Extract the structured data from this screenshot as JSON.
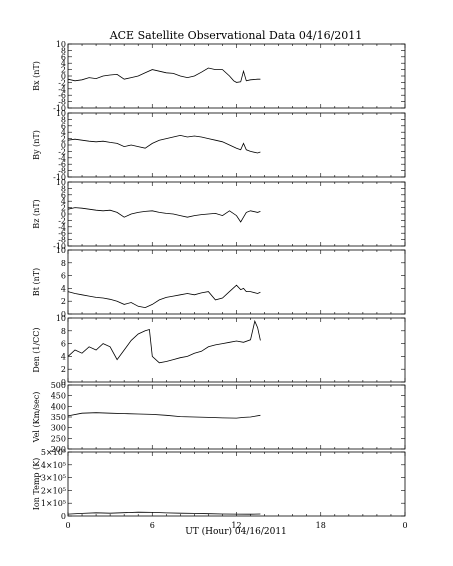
{
  "figure": {
    "title": "ACE Satellite Observational Data   04/16/2011",
    "xlabel": "UT (Hour)  04/16/2011"
  },
  "chart_data": [
    {
      "type": "line",
      "ylabel": "Bx (nT)",
      "ylim": [
        -10,
        10
      ],
      "yticks": [
        "-10",
        "-8",
        "-6",
        "-4",
        "-2",
        "0",
        "2",
        "4",
        "6",
        "8",
        "10"
      ],
      "xlim": [
        0,
        24
      ],
      "series": [
        {
          "x": [
            0,
            0.5,
            1,
            1.5,
            2,
            2.5,
            3,
            3.5,
            4,
            4.5,
            5,
            5.5,
            6,
            6.5,
            7,
            7.5,
            8,
            8.5,
            9,
            9.5,
            10,
            10.5,
            11,
            11.5,
            11.8,
            12,
            12.3,
            12.5,
            12.7,
            13,
            13.5,
            13.7
          ],
          "values": [
            -1,
            -1.5,
            -1.2,
            -0.5,
            -0.8,
            0,
            0.3,
            0.5,
            -1,
            -0.5,
            0,
            1,
            2,
            1.5,
            1,
            0.8,
            0,
            -0.5,
            0,
            1.2,
            2.5,
            2,
            2,
            0,
            -1.5,
            -2,
            -1.8,
            1.5,
            -1.5,
            -1.2,
            -1,
            -1
          ]
        }
      ]
    },
    {
      "type": "line",
      "ylabel": "By (nT)",
      "ylim": [
        -10,
        10
      ],
      "yticks": [
        "-10",
        "-8",
        "-6",
        "-4",
        "-2",
        "0",
        "2",
        "4",
        "6",
        "8",
        "10"
      ],
      "xlim": [
        0,
        24
      ],
      "series": [
        {
          "x": [
            0,
            0.5,
            1,
            1.5,
            2,
            2.5,
            3,
            3.5,
            4,
            4.5,
            5,
            5.5,
            6,
            6.5,
            7,
            7.5,
            8,
            8.5,
            9,
            9.5,
            10,
            10.5,
            11,
            11.5,
            12,
            12.3,
            12.5,
            12.7,
            13,
            13.5,
            13.7
          ],
          "values": [
            1.5,
            1.8,
            1.5,
            1.2,
            1,
            1.2,
            0.8,
            0.5,
            -0.5,
            0,
            -0.5,
            -1,
            0.5,
            1.5,
            2,
            2.5,
            3,
            2.5,
            2.8,
            2.5,
            2,
            1.5,
            1,
            0,
            -1,
            -1.5,
            0.5,
            -1.5,
            -2,
            -2.5,
            -2.2
          ]
        }
      ]
    },
    {
      "type": "line",
      "ylabel": "Bz (nT)",
      "ylim": [
        -10,
        10
      ],
      "yticks": [
        "-10",
        "-8",
        "-6",
        "-4",
        "-2",
        "0",
        "2",
        "4",
        "6",
        "8",
        "10"
      ],
      "xlim": [
        0,
        24
      ],
      "series": [
        {
          "x": [
            0,
            0.5,
            1,
            1.5,
            2,
            2.5,
            3,
            3.5,
            4,
            4.5,
            5,
            5.5,
            6,
            6.5,
            7,
            7.5,
            8,
            8.5,
            9,
            9.5,
            10,
            10.5,
            11,
            11.5,
            12,
            12.3,
            12.5,
            12.7,
            13,
            13.5,
            13.7
          ],
          "values": [
            1.5,
            2,
            1.8,
            1.5,
            1.2,
            1,
            1.2,
            0.5,
            -1,
            0,
            0.5,
            0.8,
            1,
            0.5,
            0.2,
            0,
            -0.5,
            -1,
            -0.5,
            -0.2,
            0,
            0.2,
            -0.5,
            1,
            -0.5,
            -2.5,
            -1,
            0.5,
            1,
            0.5,
            0.8
          ]
        }
      ]
    },
    {
      "type": "line",
      "ylabel": "Bt (nT)",
      "ylim": [
        0,
        10
      ],
      "yticks": [
        "0",
        "2",
        "4",
        "6",
        "8",
        "10"
      ],
      "xlim": [
        0,
        24
      ],
      "series": [
        {
          "x": [
            0,
            0.5,
            1,
            1.5,
            2,
            2.5,
            3,
            3.5,
            4,
            4.5,
            5,
            5.5,
            6,
            6.5,
            7,
            7.5,
            8,
            8.5,
            9,
            9.5,
            10,
            10.5,
            11,
            11.5,
            12,
            12.3,
            12.5,
            12.7,
            13,
            13.5,
            13.7
          ],
          "values": [
            3.5,
            3.2,
            3,
            2.8,
            2.6,
            2.5,
            2.3,
            2,
            1.5,
            1.8,
            1.2,
            1,
            1.5,
            2.2,
            2.6,
            2.8,
            3,
            3.2,
            3,
            3.3,
            3.5,
            2.2,
            2.5,
            3.5,
            4.5,
            3.8,
            4,
            3.5,
            3.5,
            3.2,
            3.4
          ]
        }
      ]
    },
    {
      "type": "line",
      "ylabel": "Den (1/CC)",
      "ylim": [
        0,
        10
      ],
      "yticks": [
        "0",
        "2",
        "4",
        "6",
        "8",
        "10"
      ],
      "xlim": [
        0,
        24
      ],
      "series": [
        {
          "x": [
            0,
            0.5,
            1,
            1.5,
            2,
            2.5,
            3,
            3.5,
            4,
            4.5,
            5,
            5.5,
            5.8,
            6,
            6.5,
            7,
            7.5,
            8,
            8.5,
            9,
            9.5,
            10,
            10.5,
            11,
            11.5,
            12,
            12.5,
            13,
            13.3,
            13.5,
            13.7
          ],
          "values": [
            4,
            5,
            4.5,
            5.5,
            5,
            6,
            5.5,
            3.5,
            5,
            6.5,
            7.5,
            8,
            8.2,
            4,
            3,
            3.2,
            3.5,
            3.8,
            4,
            4.5,
            4.8,
            5.5,
            5.8,
            6,
            6.2,
            6.4,
            6.2,
            6.6,
            9.5,
            8.5,
            6.5
          ]
        }
      ]
    },
    {
      "type": "line",
      "ylabel": "Vel (Km/sec)",
      "ylim": [
        200,
        500
      ],
      "yticks": [
        "200",
        "250",
        "300",
        "350",
        "400",
        "450",
        "500"
      ],
      "xlim": [
        0,
        24
      ],
      "series": [
        {
          "x": [
            0,
            1,
            2,
            3,
            4,
            5,
            6,
            7,
            8,
            9,
            10,
            11,
            12,
            12.5,
            13,
            13.7
          ],
          "values": [
            355,
            368,
            370,
            368,
            366,
            364,
            362,
            358,
            352,
            350,
            348,
            346,
            345,
            348,
            350,
            358
          ]
        }
      ]
    },
    {
      "type": "line",
      "ylabel": "Ion Temp (K)",
      "ylim": [
        0,
        500000
      ],
      "yticks": [
        "0",
        "1×10⁵",
        "2×10⁵",
        "3×10⁵",
        "4×10⁵",
        "5×10⁵"
      ],
      "xlim": [
        0,
        24
      ],
      "series": [
        {
          "x": [
            0,
            1,
            2,
            3,
            4,
            5,
            6,
            7,
            8,
            9,
            10,
            11,
            12,
            13,
            13.7
          ],
          "values": [
            15000,
            20000,
            25000,
            22000,
            26000,
            30000,
            28000,
            24000,
            22000,
            20000,
            18000,
            16000,
            15000,
            14000,
            16000
          ]
        }
      ]
    }
  ],
  "xticks": [
    "0",
    "6",
    "12",
    "18",
    "0"
  ]
}
